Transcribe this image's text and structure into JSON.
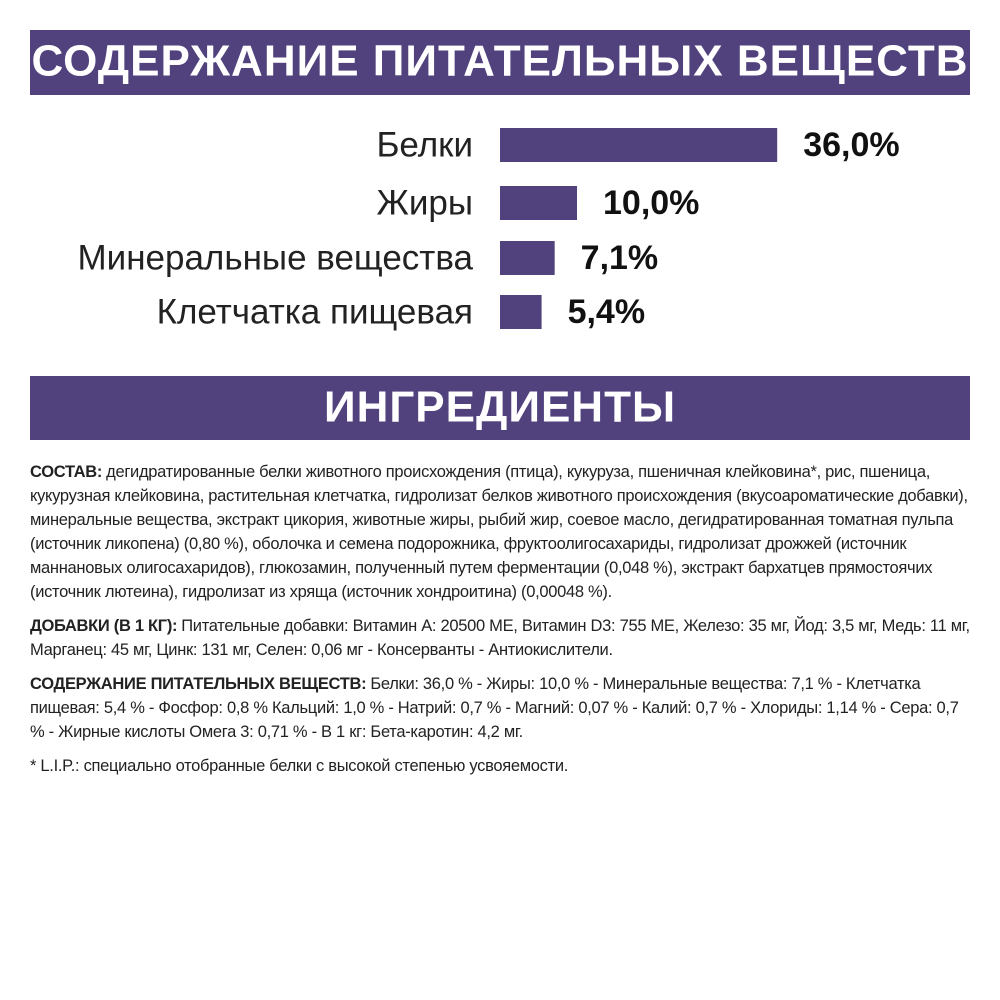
{
  "chart_data": {
    "type": "bar",
    "orientation": "horizontal",
    "title": "СОДЕРЖАНИЕ ПИТАТЕЛЬНЫХ ВЕЩЕСТВ",
    "categories": [
      "Белки",
      "Жиры",
      "Минеральные вещества",
      "Клетчатка пищевая"
    ],
    "values": [
      36,
      10,
      7.1,
      5.4
    ],
    "value_labels": [
      "36,0%",
      "10,0%",
      "7,1%",
      "5,4%"
    ],
    "color": "#51427e"
  },
  "ingredients": {
    "title": "ИНГРЕДИЕНТЫ",
    "paragraphs": [
      {
        "label": "СОСТАВ:",
        "text": "дегидратированные белки животного происхождения (птица), кукуруза, пшеничная клейковина*, рис, пшеница, кукурузная клейковина, растительная клетчатка, гидролизат белков животного происхождения (вкусоароматические добавки), минеральные вещества, экстракт цикория, животные жиры, рыбий жир, соевое масло, дегидратированная томатная пульпа (источник ликопена) (0,80 %), оболочка и семена подорожника, фруктоолигосахариды, гидролизат дрожжей (источник маннановых олигосахаридов), глюкозамин, полученный путем ферментации (0,048 %), экстракт бархатцев прямостоячих (источник лютеина), гидролизат из хряща (источник хондроитина) (0,00048 %)."
      },
      {
        "label": "ДОБАВКИ (В 1 КГ):",
        "text": "Питательные добавки: Витамин А: 20500 МЕ, Витамин D3: 755 МЕ, Железо: 35 мг, Йод: 3,5 мг, Медь: 11 мг, Марганец: 45 мг, Цинк: 131 мг, Селен: 0,06 мг - Консерванты - Антиокислители."
      },
      {
        "label": "СОДЕРЖАНИЕ ПИТАТЕЛЬНЫХ ВЕЩЕСТВ:",
        "text": "Белки: 36,0 % - Жиры: 10,0 % - Минеральные вещества: 7,1 % - Клетчатка пищевая: 5,4 % - Фосфор: 0,8 % Кальций: 1,0 % - Натрий: 0,7 % - Магний: 0,07 % - Калий: 0,7 % - Хлориды: 1,14 % - Сера: 0,7 % - Жирные кислоты Омега 3: 0,71 % - В 1 кг: Бета-каротин: 4,2 мг."
      }
    ],
    "footnote": "* L.I.P.: специально отобранные белки с высокой степенью усвояемости."
  }
}
